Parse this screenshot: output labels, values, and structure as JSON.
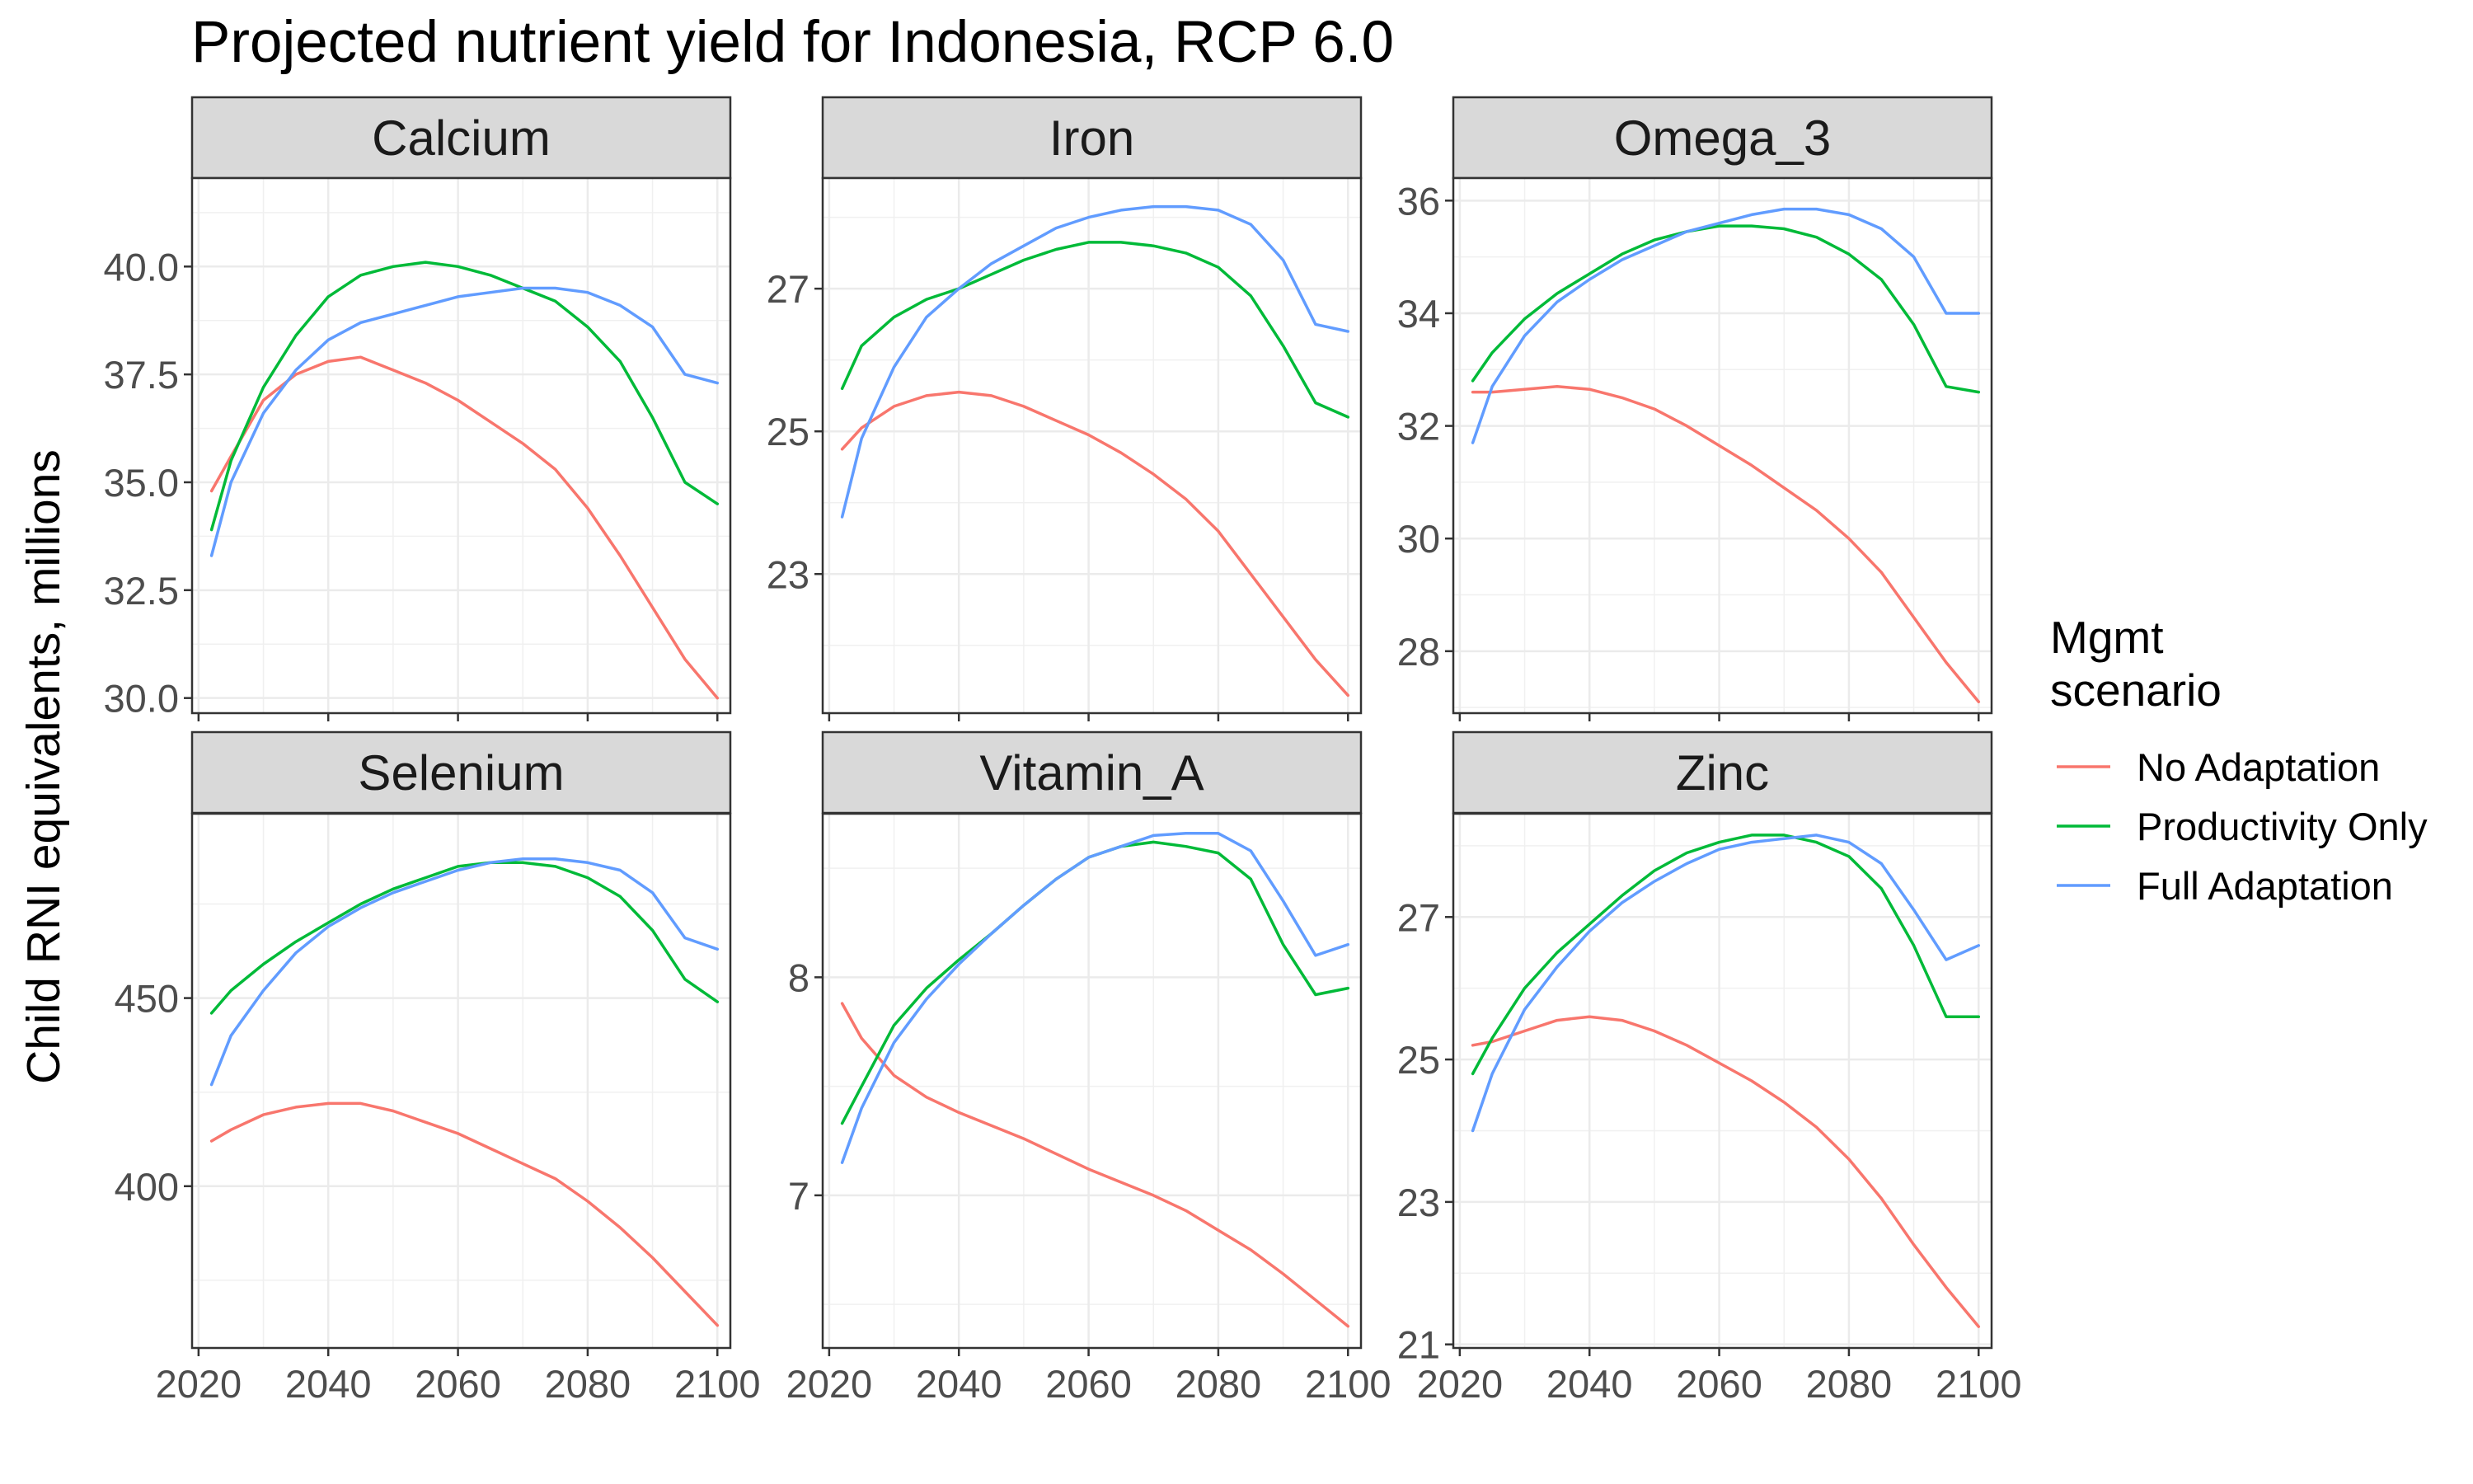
{
  "title": "Projected nutrient yield for Indonesia, RCP 6.0",
  "ylabel": "Child RNI equivalents, millions",
  "xlabel": "",
  "legend": {
    "title_line1": "Mgmt",
    "title_line2": "scenario",
    "items": [
      {
        "label": "No Adaptation",
        "color": "#F8766D"
      },
      {
        "label": "Productivity Only",
        "color": "#00BA38"
      },
      {
        "label": "Full Adaptation",
        "color": "#619CFF"
      }
    ]
  },
  "chart_data": {
    "type": "line",
    "x_ticks": [
      "2020",
      "2040",
      "2060",
      "2080",
      "2100"
    ],
    "xlim": [
      2019,
      2102
    ],
    "grid": true,
    "legend_position": "right",
    "panels": [
      {
        "name": "Calcium",
        "ylim": [
          29.65,
          42.05
        ],
        "y_ticks": [
          30.0,
          32.5,
          35.0,
          37.5,
          40.0
        ],
        "y_tick_labels": [
          "30.0",
          "32.5",
          "35.0",
          "37.5",
          "40.0"
        ],
        "series": [
          {
            "name": "No Adaptation",
            "x": [
              2022,
              2025,
              2030,
              2035,
              2040,
              2045,
              2050,
              2055,
              2060,
              2065,
              2070,
              2075,
              2080,
              2085,
              2090,
              2095,
              2100
            ],
            "y": [
              34.8,
              35.6,
              36.9,
              37.5,
              37.8,
              37.9,
              37.6,
              37.3,
              36.9,
              36.4,
              35.9,
              35.3,
              34.4,
              33.3,
              32.1,
              30.9,
              30.0
            ]
          },
          {
            "name": "Productivity Only",
            "x": [
              2022,
              2025,
              2030,
              2035,
              2040,
              2045,
              2050,
              2055,
              2060,
              2065,
              2070,
              2075,
              2080,
              2085,
              2090,
              2095,
              2100
            ],
            "y": [
              33.9,
              35.5,
              37.2,
              38.4,
              39.3,
              39.8,
              40.0,
              40.1,
              40.0,
              39.8,
              39.5,
              39.2,
              38.6,
              37.8,
              36.5,
              35.0,
              34.5
            ]
          },
          {
            "name": "Full Adaptation",
            "x": [
              2022,
              2025,
              2030,
              2035,
              2040,
              2045,
              2050,
              2055,
              2060,
              2065,
              2070,
              2075,
              2080,
              2085,
              2090,
              2095,
              2100
            ],
            "y": [
              33.3,
              35.0,
              36.6,
              37.6,
              38.3,
              38.7,
              38.9,
              39.1,
              39.3,
              39.4,
              39.5,
              39.5,
              39.4,
              39.1,
              38.6,
              37.5,
              37.3
            ]
          }
        ]
      },
      {
        "name": "Iron",
        "ylim": [
          21.05,
          28.55
        ],
        "y_ticks": [
          23,
          25,
          27
        ],
        "y_tick_labels": [
          "23",
          "25",
          "27"
        ],
        "series": [
          {
            "name": "No Adaptation",
            "x": [
              2022,
              2025,
              2030,
              2035,
              2040,
              2045,
              2050,
              2055,
              2060,
              2065,
              2070,
              2075,
              2080,
              2085,
              2090,
              2095,
              2100
            ],
            "y": [
              24.75,
              25.05,
              25.35,
              25.5,
              25.55,
              25.5,
              25.35,
              25.15,
              24.95,
              24.7,
              24.4,
              24.05,
              23.6,
              23.0,
              22.4,
              21.8,
              21.3
            ]
          },
          {
            "name": "Productivity Only",
            "x": [
              2022,
              2025,
              2030,
              2035,
              2040,
              2045,
              2050,
              2055,
              2060,
              2065,
              2070,
              2075,
              2080,
              2085,
              2090,
              2095,
              2100
            ],
            "y": [
              25.6,
              26.2,
              26.6,
              26.85,
              27.0,
              27.2,
              27.4,
              27.55,
              27.65,
              27.65,
              27.6,
              27.5,
              27.3,
              26.9,
              26.2,
              25.4,
              25.2
            ]
          },
          {
            "name": "Full Adaptation",
            "x": [
              2022,
              2025,
              2030,
              2035,
              2040,
              2045,
              2050,
              2055,
              2060,
              2065,
              2070,
              2075,
              2080,
              2085,
              2090,
              2095,
              2100
            ],
            "y": [
              23.8,
              24.9,
              25.9,
              26.6,
              27.0,
              27.35,
              27.6,
              27.85,
              28.0,
              28.1,
              28.15,
              28.15,
              28.1,
              27.9,
              27.4,
              26.5,
              26.4
            ]
          }
        ]
      },
      {
        "name": "Omega_3",
        "ylim": [
          26.9,
          36.4
        ],
        "y_ticks": [
          28,
          30,
          32,
          34,
          36
        ],
        "y_tick_labels": [
          "28",
          "30",
          "32",
          "34",
          "36"
        ],
        "series": [
          {
            "name": "No Adaptation",
            "x": [
              2022,
              2025,
              2030,
              2035,
              2040,
              2045,
              2050,
              2055,
              2060,
              2065,
              2070,
              2075,
              2080,
              2085,
              2090,
              2095,
              2100
            ],
            "y": [
              32.6,
              32.6,
              32.65,
              32.7,
              32.65,
              32.5,
              32.3,
              32.0,
              31.65,
              31.3,
              30.9,
              30.5,
              30.0,
              29.4,
              28.6,
              27.8,
              27.1
            ]
          },
          {
            "name": "Productivity Only",
            "x": [
              2022,
              2025,
              2030,
              2035,
              2040,
              2045,
              2050,
              2055,
              2060,
              2065,
              2070,
              2075,
              2080,
              2085,
              2090,
              2095,
              2100
            ],
            "y": [
              32.8,
              33.3,
              33.9,
              34.35,
              34.7,
              35.05,
              35.3,
              35.45,
              35.55,
              35.55,
              35.5,
              35.35,
              35.05,
              34.6,
              33.8,
              32.7,
              32.6
            ]
          },
          {
            "name": "Full Adaptation",
            "x": [
              2022,
              2025,
              2030,
              2035,
              2040,
              2045,
              2050,
              2055,
              2060,
              2065,
              2070,
              2075,
              2080,
              2085,
              2090,
              2095,
              2100
            ],
            "y": [
              31.7,
              32.7,
              33.6,
              34.2,
              34.6,
              34.95,
              35.2,
              35.45,
              35.6,
              35.75,
              35.85,
              35.85,
              35.75,
              35.5,
              35.0,
              34.0,
              34.0
            ]
          }
        ]
      },
      {
        "name": "Selenium",
        "ylim": [
          357,
          499
        ],
        "y_ticks": [
          400,
          450
        ],
        "y_tick_labels": [
          "400",
          "450"
        ],
        "series": [
          {
            "name": "No Adaptation",
            "x": [
              2022,
              2025,
              2030,
              2035,
              2040,
              2045,
              2050,
              2055,
              2060,
              2065,
              2070,
              2075,
              2080,
              2085,
              2090,
              2095,
              2100
            ],
            "y": [
              412,
              415,
              419,
              421,
              422,
              422,
              420,
              417,
              414,
              410,
              406,
              402,
              396,
              389,
              381,
              372,
              363
            ]
          },
          {
            "name": "Productivity Only",
            "x": [
              2022,
              2025,
              2030,
              2035,
              2040,
              2045,
              2050,
              2055,
              2060,
              2065,
              2070,
              2075,
              2080,
              2085,
              2090,
              2095,
              2100
            ],
            "y": [
              446,
              452,
              459,
              465,
              470,
              475,
              479,
              482,
              485,
              486,
              486,
              485,
              482,
              477,
              468,
              455,
              449
            ]
          },
          {
            "name": "Full Adaptation",
            "x": [
              2022,
              2025,
              2030,
              2035,
              2040,
              2045,
              2050,
              2055,
              2060,
              2065,
              2070,
              2075,
              2080,
              2085,
              2090,
              2095,
              2100
            ],
            "y": [
              427,
              440,
              452,
              462,
              469,
              474,
              478,
              481,
              484,
              486,
              487,
              487,
              486,
              484,
              478,
              466,
              463
            ]
          }
        ]
      },
      {
        "name": "Vitamin_A",
        "ylim": [
          6.3,
          8.75
        ],
        "y_ticks": [
          7,
          8
        ],
        "y_tick_labels": [
          "7",
          "8"
        ],
        "series": [
          {
            "name": "No Adaptation",
            "x": [
              2022,
              2025,
              2030,
              2035,
              2040,
              2045,
              2050,
              2055,
              2060,
              2065,
              2070,
              2075,
              2080,
              2085,
              2090,
              2095,
              2100
            ],
            "y": [
              7.88,
              7.72,
              7.55,
              7.45,
              7.38,
              7.32,
              7.26,
              7.19,
              7.12,
              7.06,
              7.0,
              6.93,
              6.84,
              6.75,
              6.64,
              6.52,
              6.4
            ]
          },
          {
            "name": "Productivity Only",
            "x": [
              2022,
              2025,
              2030,
              2035,
              2040,
              2045,
              2050,
              2055,
              2060,
              2065,
              2070,
              2075,
              2080,
              2085,
              2090,
              2095,
              2100
            ],
            "y": [
              7.33,
              7.5,
              7.78,
              7.95,
              8.08,
              8.2,
              8.33,
              8.45,
              8.55,
              8.6,
              8.62,
              8.6,
              8.57,
              8.45,
              8.15,
              7.92,
              7.95
            ]
          },
          {
            "name": "Full Adaptation",
            "x": [
              2022,
              2025,
              2030,
              2035,
              2040,
              2045,
              2050,
              2055,
              2060,
              2065,
              2070,
              2075,
              2080,
              2085,
              2090,
              2095,
              2100
            ],
            "y": [
              7.15,
              7.4,
              7.7,
              7.9,
              8.06,
              8.2,
              8.33,
              8.45,
              8.55,
              8.6,
              8.65,
              8.66,
              8.66,
              8.58,
              8.35,
              8.1,
              8.15
            ]
          }
        ]
      },
      {
        "name": "Zinc",
        "ylim": [
          20.95,
          28.45
        ],
        "y_ticks": [
          21,
          23,
          25,
          27
        ],
        "y_tick_labels": [
          "21",
          "23",
          "25",
          "27"
        ],
        "series": [
          {
            "name": "No Adaptation",
            "x": [
              2022,
              2025,
              2030,
              2035,
              2040,
              2045,
              2050,
              2055,
              2060,
              2065,
              2070,
              2075,
              2080,
              2085,
              2090,
              2095,
              2100
            ],
            "y": [
              25.2,
              25.25,
              25.4,
              25.55,
              25.6,
              25.55,
              25.4,
              25.2,
              24.95,
              24.7,
              24.4,
              24.05,
              23.6,
              23.05,
              22.4,
              21.8,
              21.25
            ]
          },
          {
            "name": "Productivity Only",
            "x": [
              2022,
              2025,
              2030,
              2035,
              2040,
              2045,
              2050,
              2055,
              2060,
              2065,
              2070,
              2075,
              2080,
              2085,
              2090,
              2095,
              2100
            ],
            "y": [
              24.8,
              25.3,
              26.0,
              26.5,
              26.9,
              27.3,
              27.65,
              27.9,
              28.05,
              28.15,
              28.15,
              28.05,
              27.85,
              27.4,
              26.6,
              25.6,
              25.6
            ]
          },
          {
            "name": "Full Adaptation",
            "x": [
              2022,
              2025,
              2030,
              2035,
              2040,
              2045,
              2050,
              2055,
              2060,
              2065,
              2070,
              2075,
              2080,
              2085,
              2090,
              2095,
              2100
            ],
            "y": [
              24.0,
              24.8,
              25.7,
              26.3,
              26.8,
              27.2,
              27.5,
              27.75,
              27.95,
              28.05,
              28.1,
              28.15,
              28.05,
              27.75,
              27.1,
              26.4,
              26.6
            ]
          }
        ]
      }
    ]
  }
}
